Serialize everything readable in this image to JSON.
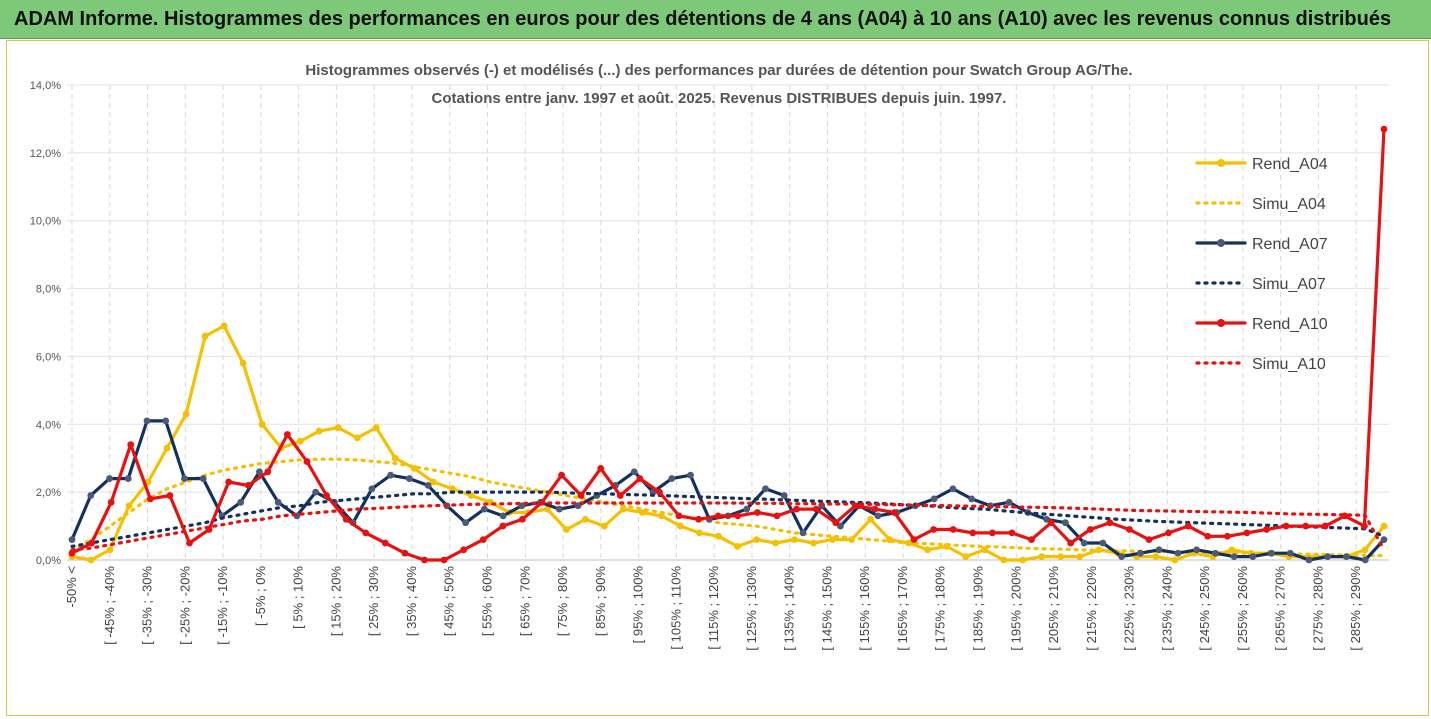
{
  "header": {
    "title": "ADAM Informe. Histogrammes des performances en euros pour des détentions de 4 ans (A04) à 10 ans (A10) avec les revenus connus distribués"
  },
  "chart_data": {
    "type": "line",
    "title_line1": "Histogrammes observés (-) et modélisés (...) des performances par durées de détention pour Swatch Group AG/The.",
    "title_line2": "Cotations entre janv. 1997 et août. 2025. Revenus DISTRIBUES depuis juin. 1997.",
    "ylim": [
      0,
      14
    ],
    "y_ticks": [
      "0,0%",
      "2,0%",
      "4,0%",
      "6,0%",
      "8,0%",
      "10,0%",
      "12,0%",
      "14,0%"
    ],
    "x_tick_labels": [
      "-50% <",
      "[ -45% ; -40%",
      "[ -35% ; -30%",
      "[ -25% ; -20%",
      "[ -15% ; -10%",
      "[ -5% ; 0%",
      "[ 5% ; 10%",
      "[ 15% ; 20%",
      "[ 25% ; 30%",
      "[ 35% ; 40%",
      "[ 45% ; 50%",
      "[ 55% ; 60%",
      "[ 65% ; 70%",
      "[ 75% ; 80%",
      "[ 85% ; 90%",
      "[ 95% ; 100%",
      "[ 105% ; 110%",
      "[ 115% ; 120%",
      "[ 125% ; 130%",
      "[ 135% ; 140%",
      "[ 145% ; 150%",
      "[ 155% ; 160%",
      "[ 165% ; 170%",
      "[ 175% ; 180%",
      "[ 185% ; 190%",
      "[ 195% ; 200%",
      "[ 205% ; 210%",
      "[ 215% ; 220%",
      "[ 225% ; 230%",
      "[ 235% ; 240%",
      "[ 245% ; 250%",
      "[ 255% ; 260%",
      "[ 265% ; 270%",
      "[ 275% ; 280%",
      "[ 285% ; 290%"
    ],
    "grid": true,
    "legend_position": "right",
    "series": [
      {
        "name": "Rend_A04",
        "style": "solid",
        "color": "#f5c000",
        "values": [
          0.1,
          0.0,
          0.3,
          1.6,
          2.3,
          3.3,
          4.3,
          6.6,
          6.9,
          5.8,
          4.0,
          3.3,
          3.5,
          3.8,
          3.9,
          3.6,
          3.9,
          3.0,
          2.7,
          2.3,
          2.1,
          1.9,
          1.7,
          1.4,
          1.4,
          1.5,
          0.9,
          1.2,
          1.0,
          1.5,
          1.4,
          1.3,
          1.0,
          0.8,
          0.7,
          0.4,
          0.6,
          0.5,
          0.6,
          0.5,
          0.6,
          0.6,
          1.2,
          0.6,
          0.5,
          0.3,
          0.4,
          0.1,
          0.3,
          0.0,
          0.0,
          0.1,
          0.1,
          0.1,
          0.3,
          0.2,
          0.1,
          0.1,
          0.0,
          0.2,
          0.1,
          0.3,
          0.2,
          0.2,
          0.1,
          0.1,
          0.1,
          0.1,
          0.3,
          1.0
        ]
      },
      {
        "name": "Simu_A04",
        "style": "dotted",
        "color": "#f5c000",
        "values": [
          0.3,
          0.6,
          1.0,
          1.4,
          1.8,
          2.1,
          2.3,
          2.5,
          2.65,
          2.75,
          2.85,
          2.9,
          2.95,
          2.97,
          2.97,
          2.95,
          2.9,
          2.85,
          2.75,
          2.65,
          2.55,
          2.45,
          2.3,
          2.2,
          2.1,
          2.0,
          1.9,
          1.8,
          1.7,
          1.6,
          1.5,
          1.4,
          1.3,
          1.2,
          1.1,
          1.05,
          1.0,
          0.9,
          0.8,
          0.75,
          0.7,
          0.65,
          0.6,
          0.55,
          0.5,
          0.48,
          0.45,
          0.42,
          0.4,
          0.38,
          0.35,
          0.33,
          0.32,
          0.3,
          0.28,
          0.27,
          0.26,
          0.25,
          0.24,
          0.23,
          0.22,
          0.21,
          0.2,
          0.19,
          0.18,
          0.17,
          0.16,
          0.15,
          0.14,
          0.13
        ]
      },
      {
        "name": "Rend_A07",
        "style": "solid",
        "color": "#14305e",
        "values": [
          0.6,
          1.9,
          2.4,
          2.4,
          4.1,
          4.1,
          2.4,
          2.4,
          1.3,
          1.7,
          2.6,
          1.7,
          1.3,
          2.0,
          1.7,
          1.1,
          2.1,
          2.5,
          2.4,
          2.2,
          1.6,
          1.1,
          1.5,
          1.3,
          1.6,
          1.7,
          1.5,
          1.6,
          1.9,
          2.2,
          2.6,
          2.0,
          2.4,
          2.5,
          1.2,
          1.3,
          1.5,
          2.1,
          1.9,
          0.8,
          1.6,
          1.0,
          1.6,
          1.3,
          1.4,
          1.6,
          1.8,
          2.1,
          1.8,
          1.6,
          1.7,
          1.4,
          1.2,
          1.1,
          0.5,
          0.5,
          0.1,
          0.2,
          0.3,
          0.2,
          0.3,
          0.2,
          0.1,
          0.1,
          0.2,
          0.2,
          0.0,
          0.1,
          0.1,
          0.0,
          0.6
        ]
      },
      {
        "name": "Simu_A07",
        "style": "dotted",
        "color": "#14305e",
        "values": [
          0.4,
          0.5,
          0.6,
          0.7,
          0.8,
          0.9,
          1.0,
          1.1,
          1.25,
          1.35,
          1.45,
          1.55,
          1.6,
          1.7,
          1.75,
          1.8,
          1.85,
          1.9,
          1.95,
          1.95,
          2.0,
          2.0,
          2.0,
          2.0,
          2.0,
          2.0,
          1.98,
          1.96,
          1.95,
          1.93,
          1.92,
          1.9,
          1.88,
          1.86,
          1.84,
          1.82,
          1.8,
          1.78,
          1.76,
          1.74,
          1.72,
          1.7,
          1.68,
          1.65,
          1.62,
          1.6,
          1.55,
          1.52,
          1.5,
          1.45,
          1.4,
          1.36,
          1.32,
          1.28,
          1.24,
          1.2,
          1.17,
          1.14,
          1.12,
          1.1,
          1.08,
          1.06,
          1.04,
          1.02,
          1.0,
          0.98,
          0.96,
          0.94,
          0.92,
          0.7
        ]
      },
      {
        "name": "Rend_A10",
        "style": "solid",
        "color": "#e81010",
        "values": [
          0.2,
          0.5,
          1.7,
          3.4,
          1.8,
          1.9,
          0.5,
          0.9,
          2.3,
          2.2,
          2.6,
          3.7,
          2.9,
          1.9,
          1.2,
          0.8,
          0.5,
          0.2,
          0.0,
          0.0,
          0.3,
          0.6,
          1.0,
          1.2,
          1.7,
          2.5,
          1.9,
          2.7,
          1.9,
          2.4,
          2.0,
          1.3,
          1.2,
          1.3,
          1.3,
          1.4,
          1.3,
          1.5,
          1.5,
          1.1,
          1.6,
          1.5,
          1.4,
          0.6,
          0.9,
          0.9,
          0.8,
          0.8,
          0.8,
          0.6,
          1.1,
          0.5,
          0.9,
          1.1,
          0.9,
          0.6,
          0.8,
          1.0,
          0.7,
          0.7,
          0.8,
          0.9,
          1.0,
          1.0,
          1.0,
          1.3,
          1.0,
          12.7
        ]
      },
      {
        "name": "Simu_A10",
        "style": "dotted",
        "color": "#e81010",
        "values": [
          0.3,
          0.35,
          0.45,
          0.55,
          0.65,
          0.75,
          0.85,
          0.95,
          1.05,
          1.15,
          1.2,
          1.3,
          1.35,
          1.4,
          1.45,
          1.5,
          1.52,
          1.55,
          1.58,
          1.6,
          1.62,
          1.64,
          1.65,
          1.66,
          1.67,
          1.68,
          1.68,
          1.68,
          1.68,
          1.68,
          1.68,
          1.68,
          1.68,
          1.68,
          1.68,
          1.68,
          1.67,
          1.67,
          1.66,
          1.66,
          1.65,
          1.65,
          1.64,
          1.63,
          1.62,
          1.61,
          1.6,
          1.59,
          1.58,
          1.57,
          1.56,
          1.55,
          1.54,
          1.52,
          1.5,
          1.48,
          1.46,
          1.45,
          1.44,
          1.43,
          1.42,
          1.41,
          1.4,
          1.38,
          1.36,
          1.35,
          1.34,
          1.33,
          1.32,
          0.3
        ]
      }
    ]
  }
}
